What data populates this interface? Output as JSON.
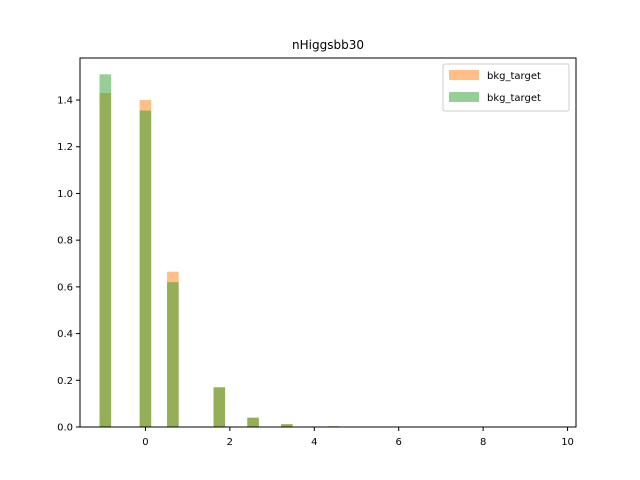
{
  "chart_data": {
    "type": "bar",
    "title": "nHiggsbb30",
    "xlabel": "",
    "ylabel": "",
    "xlim": [
      -1.55,
      10.2
    ],
    "ylim": [
      0,
      1.58
    ],
    "xticks": [
      0,
      2,
      4,
      6,
      8,
      10
    ],
    "yticks": [
      0.0,
      0.2,
      0.4,
      0.6,
      0.8,
      1.0,
      1.2,
      1.4
    ],
    "ytick_labels": [
      "0.0",
      "0.2",
      "0.4",
      "0.6",
      "0.8",
      "1.0",
      "1.2",
      "1.4"
    ],
    "bin_width": 0.275,
    "grid": false,
    "legend_position": "top-right",
    "series": [
      {
        "name": "bkg_target",
        "color": "#ff7f0e",
        "opacity": 0.5,
        "x": [
          -0.95,
          0.0,
          0.65,
          1.75,
          2.55,
          3.35,
          4.45
        ],
        "values": [
          1.43,
          1.4,
          0.665,
          0.17,
          0.04,
          0.012,
          0.003
        ]
      },
      {
        "name": "bkg_target",
        "color": "#2ca02c",
        "opacity": 0.5,
        "x": [
          -0.95,
          0.0,
          0.65,
          1.75,
          2.55,
          3.35,
          4.45
        ],
        "values": [
          1.51,
          1.355,
          0.62,
          0.17,
          0.04,
          0.012,
          0.003
        ]
      }
    ]
  }
}
